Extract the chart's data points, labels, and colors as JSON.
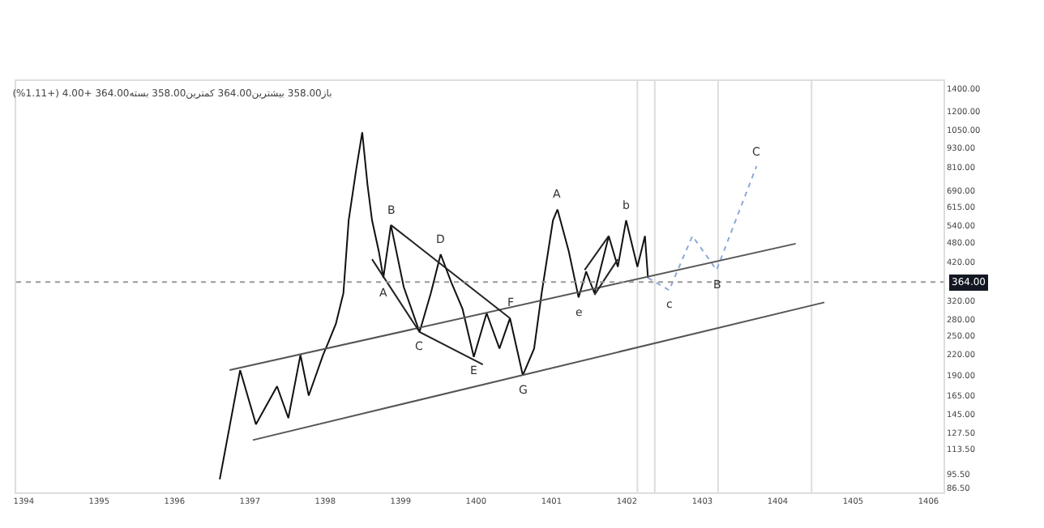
{
  "chart_data": {
    "type": "line",
    "title": "باز358.00 بیشترین364.00 کمترین358.00 بسته364.00 +4.00 (+1.11%)",
    "series": [
      {
        "color": "#111111",
        "x": [
          1396.6,
          1396.87,
          1397.08,
          1397.36,
          1397.51,
          1397.67,
          1397.78,
          1397.97,
          1398.03,
          1398.09,
          1398.14,
          1398.24,
          1398.31,
          1398.41,
          1398.49,
          1398.56,
          1398.62,
          1398.71,
          1398.77,
          1398.87,
          1399.04,
          1399.25,
          1399.4,
          1399.53,
          1399.67,
          1399.82,
          1399.97,
          1400.14,
          1400.31,
          1400.45,
          1400.62,
          1400.77,
          1400.87,
          1401.02,
          1401.08,
          1401.23,
          1401.36,
          1401.46,
          1401.57,
          1401.76,
          1401.88,
          1401.99,
          1402.14,
          1402.24,
          1402.28
        ],
        "values": [
          92,
          197,
          135,
          176,
          141,
          219,
          165,
          219,
          236,
          255,
          272,
          337,
          560,
          799,
          1035,
          717,
          560,
          451,
          375,
          542,
          352,
          257,
          337,
          442,
          364,
          302,
          216,
          293,
          229,
          283,
          190,
          229,
          337,
          560,
          604,
          451,
          327,
          392,
          337,
          502,
          405,
          560,
          405,
          502,
          375
        ]
      },
      {
        "color": "#8fa8d8",
        "line_style": "dotted",
        "x": [
          1402.28,
          1402.56,
          1402.87,
          1403.19,
          1403.72
        ],
        "values": [
          375,
          344,
          502,
          396,
          817
        ]
      },
      {
        "color": "#555555",
        "x": [
          1397.04,
          1404.62
        ],
        "values": [
          121,
          316
        ]
      },
      {
        "color": "#555555",
        "x": [
          1396.73,
          1404.24
        ],
        "values": [
          197,
          476
        ]
      },
      {
        "color": "#222222",
        "x": [
          1398.87,
          1400.45
        ],
        "values": [
          542,
          283
        ]
      },
      {
        "color": "#222222",
        "x": [
          1398.62,
          1399.25,
          1400.09
        ],
        "values": [
          427,
          257,
          205
        ]
      },
      {
        "color": "#222222",
        "x": [
          1401.44,
          1401.76
        ],
        "values": [
          396,
          502
        ]
      },
      {
        "color": "#222222",
        "x": [
          1401.57,
          1401.88
        ],
        "values": [
          333,
          427
        ]
      }
    ],
    "annotations": [
      {
        "text": "A",
        "x": 1398.77,
        "y": 375
      },
      {
        "text": "B",
        "x": 1398.87,
        "y": 542
      },
      {
        "text": "C",
        "x": 1399.25,
        "y": 257
      },
      {
        "text": "D",
        "x": 1399.53,
        "y": 442
      },
      {
        "text": "E",
        "x": 1399.97,
        "y": 216
      },
      {
        "text": "F",
        "x": 1400.45,
        "y": 283
      },
      {
        "text": "G",
        "x": 1400.62,
        "y": 190
      },
      {
        "text": "A",
        "x": 1401.08,
        "y": 604
      },
      {
        "text": "e",
        "x": 1401.36,
        "y": 327
      },
      {
        "text": "b",
        "x": 1401.99,
        "y": 560
      },
      {
        "text": "c",
        "x": 1402.56,
        "y": 344
      },
      {
        "text": "B",
        "x": 1403.19,
        "y": 396
      },
      {
        "text": "C",
        "x": 1403.72,
        "y": 817
      }
    ],
    "ref_lines": [
      {
        "axis": "y",
        "value": 364,
        "label": "364.00",
        "color": "#999999",
        "line_style": "dotted"
      },
      {
        "axis": "x",
        "value": 1402.14,
        "color": "#dddddd"
      },
      {
        "axis": "x",
        "value": 1402.37,
        "color": "#dddddd"
      },
      {
        "axis": "x",
        "value": 1403.21,
        "color": "#dddddd"
      },
      {
        "axis": "x",
        "value": 1404.45,
        "color": "#dddddd"
      }
    ],
    "log": "y",
    "grid": false,
    "xlim": [
      1393.9,
      1406.2
    ],
    "xticks": [
      1394,
      1395,
      1396,
      1397,
      1398,
      1399,
      1400,
      1401,
      1402,
      1403,
      1404,
      1405,
      1406
    ],
    "ylim": [
      84,
      1480
    ],
    "yticks": [
      {
        "value": 1400,
        "label": "1400.00"
      },
      {
        "value": 1200,
        "label": "1200.00"
      },
      {
        "value": 1050,
        "label": "1050.00"
      },
      {
        "value": 930,
        "label": "930.00"
      },
      {
        "value": 810,
        "label": "810.00"
      },
      {
        "value": 690,
        "label": "690.00"
      },
      {
        "value": 615,
        "label": "615.00"
      },
      {
        "value": 540,
        "label": "540.00"
      },
      {
        "value": 480,
        "label": "480.00"
      },
      {
        "value": 420,
        "label": "420.00"
      },
      {
        "value": 320,
        "label": "320.00"
      },
      {
        "value": 280,
        "label": "280.00"
      },
      {
        "value": 250,
        "label": "250.00"
      },
      {
        "value": 220,
        "label": "220.00"
      },
      {
        "value": 190,
        "label": "190.00"
      },
      {
        "value": 165,
        "label": "165.00"
      },
      {
        "value": 145,
        "label": "145.00"
      },
      {
        "value": 127.5,
        "label": "127.50"
      },
      {
        "value": 113.5,
        "label": "113.50"
      },
      {
        "value": 95.5,
        "label": "95.50"
      },
      {
        "value": 86.5,
        "label": "86.50"
      }
    ]
  }
}
